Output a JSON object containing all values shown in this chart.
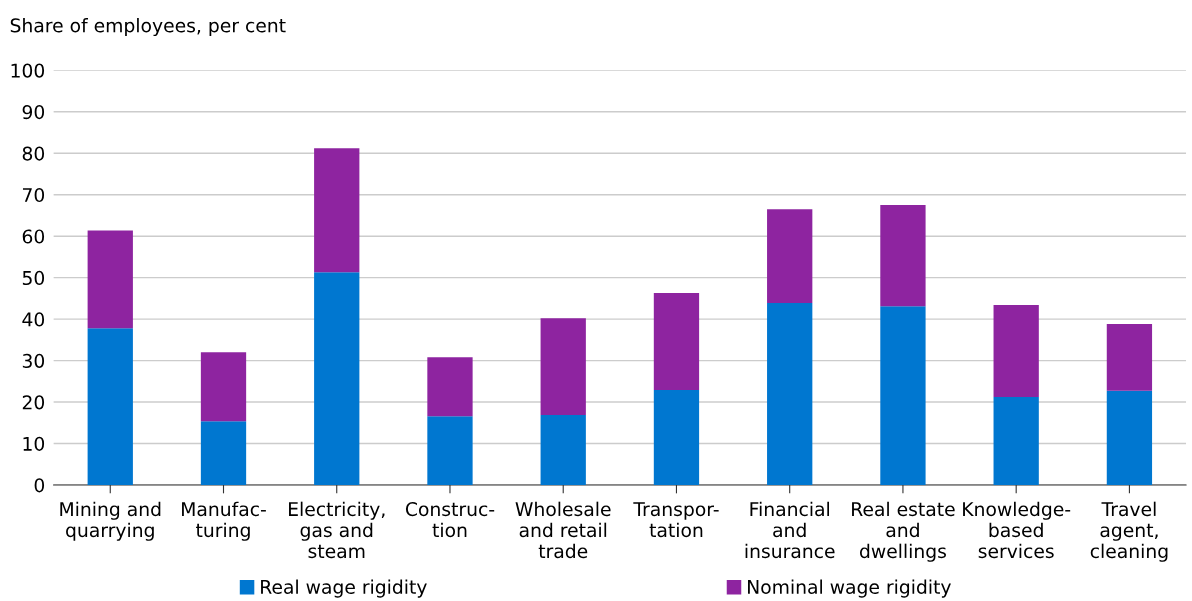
{
  "chart_data": {
    "type": "bar",
    "stacked": true,
    "ylabel": "Share of employees, per cent",
    "categories": [
      "Mining and\nquarrying",
      "Manufac-\nturing",
      "Electricity,\ngas and\nsteam",
      "Construc-\ntion",
      "Wholesale\nand retail\ntrade",
      "Transpor-\ntation",
      "Financial\nand\ninsurance",
      "Real estate\nand\ndwellings",
      "Knowledge-\nbased\nservices",
      "Travel\nagent,\ncleaning"
    ],
    "series": [
      {
        "name": "Real wage rigidity",
        "color": "#0077d0",
        "values": [
          37.8,
          15.4,
          51.3,
          16.6,
          16.9,
          22.9,
          43.9,
          43.1,
          21.2,
          22.7
        ]
      },
      {
        "name": "Nominal wage rigidity",
        "color": "#8e24a0",
        "values": [
          23.6,
          16.6,
          29.9,
          14.2,
          23.3,
          23.4,
          22.6,
          24.4,
          22.2,
          16.1
        ]
      }
    ],
    "ylim": [
      0,
      100
    ],
    "yticks": [
      0,
      10,
      20,
      30,
      40,
      50,
      60,
      70,
      80,
      90,
      100
    ],
    "grid": "y",
    "legend": "bottom"
  }
}
